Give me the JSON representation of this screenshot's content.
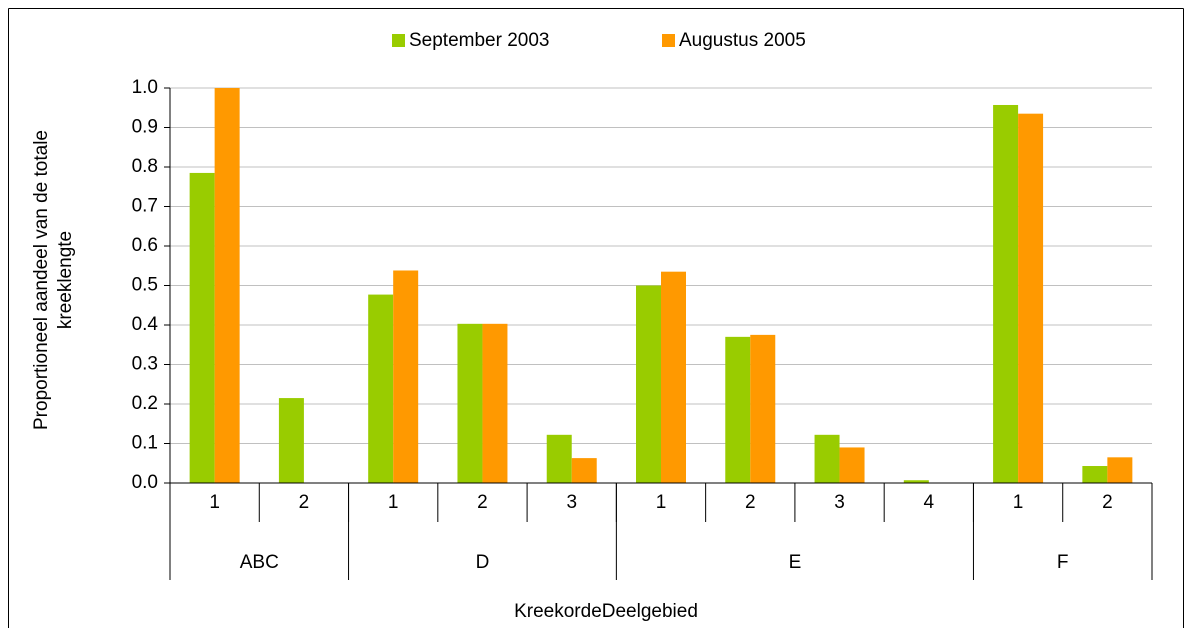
{
  "chart_data": {
    "type": "bar",
    "ylabel": [
      "Proportioneel aandeel van de totale",
      "kreeklengte"
    ],
    "xlabel": "KreekordeDeelgebied",
    "category_groups": [
      {
        "name": "ABC",
        "categories": [
          "1",
          "2"
        ]
      },
      {
        "name": "D",
        "categories": [
          "1",
          "2",
          "3"
        ]
      },
      {
        "name": "E",
        "categories": [
          "1",
          "2",
          "3",
          "4"
        ]
      },
      {
        "name": "F",
        "categories": [
          "1",
          "2"
        ]
      }
    ],
    "series": [
      {
        "name": "September 2003",
        "color": "#99cc00",
        "values": [
          0.785,
          0.215,
          0.477,
          0.403,
          0.122,
          0.5,
          0.37,
          0.122,
          0.007,
          0.957,
          0.043
        ]
      },
      {
        "name": "Augustus 2005",
        "color": "#ff9900",
        "values": [
          1.0,
          0,
          0.538,
          0.403,
          0.063,
          0.535,
          0.375,
          0.09,
          0,
          0.935,
          0.065
        ]
      }
    ],
    "ylim": [
      0,
      1
    ],
    "yticks": [
      {
        "value": 0,
        "label": "0.0"
      },
      0.1,
      0.2,
      0.3,
      0.4,
      0.5,
      0.6,
      0.7,
      0.8,
      0.9,
      {
        "value": 1,
        "label": "1.0"
      }
    ],
    "grid": true,
    "legend": "top"
  }
}
